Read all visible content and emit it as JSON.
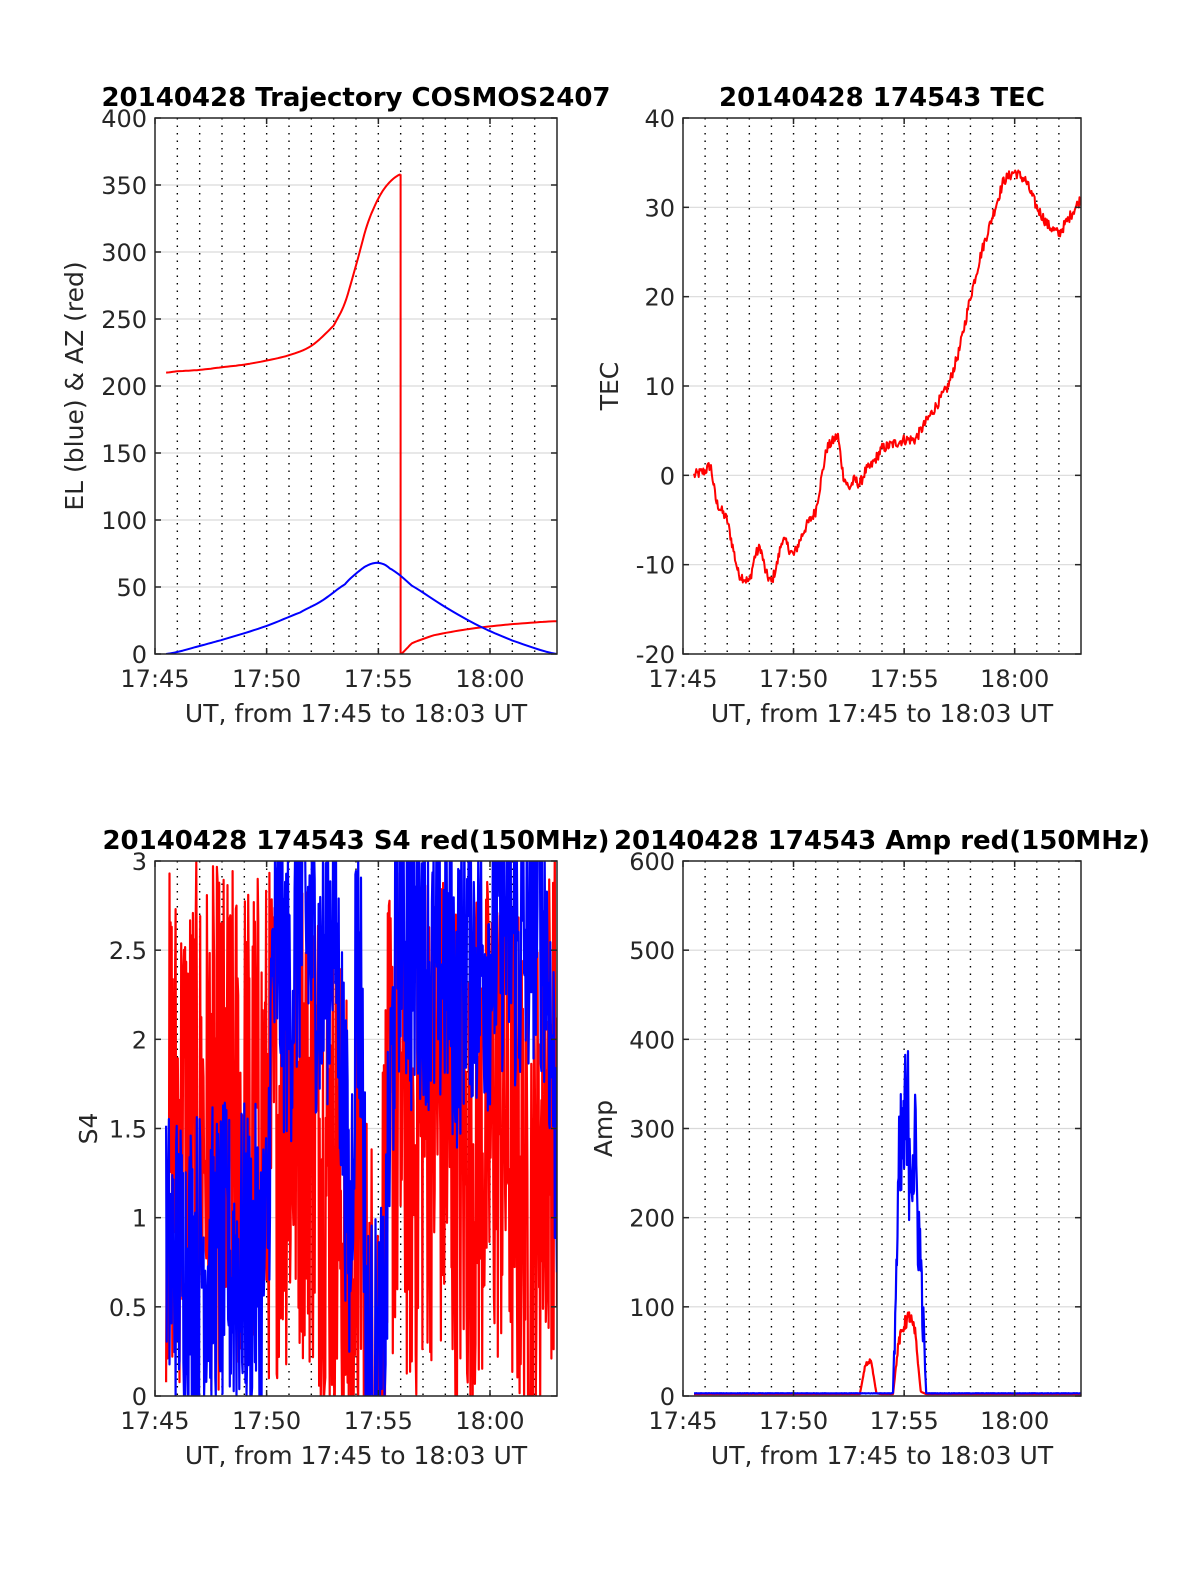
{
  "charts": {
    "colors": {
      "red": "#ff0000",
      "blue": "#0000ff",
      "grid_major": "#d9d9d9",
      "grid_minor": "#000000",
      "axis": "#262626"
    },
    "chart_data": [
      {
        "id": "trajectory",
        "type": "line",
        "title": "20140428 Trajectory COSMOS2407",
        "xlabel": "UT, from 17:45 to 18:03 UT",
        "ylabel": "EL (blue) & AZ (red)",
        "xlim": [
          17.75,
          18.05
        ],
        "ylim": [
          0,
          400
        ],
        "xticks": [
          17.75,
          17.8333,
          17.9167,
          18.0
        ],
        "xtick_labels": [
          "17:45",
          "17:50",
          "17:55",
          "18:00"
        ],
        "yticks": [
          0,
          50,
          100,
          150,
          200,
          250,
          300,
          350,
          400
        ],
        "ytick_labels": [
          "0",
          "50",
          "100",
          "150",
          "200",
          "250",
          "300",
          "350",
          "400"
        ],
        "grid": true,
        "series": [
          {
            "color": "red",
            "style": "smooth",
            "x": [
              17.7583,
              17.7667,
              17.7833,
              17.8,
              17.8167,
              17.8333,
              17.85,
              17.8667,
              17.8833,
              17.8917,
              17.9,
              17.9083,
              17.9167,
              17.925,
              17.9333
            ],
            "y": [
              210,
              211,
              212,
              214,
              216,
              219,
              223,
              230,
              245,
              262,
              290,
              320,
              340,
              352,
              358
            ]
          },
          {
            "color": "red",
            "style": "line",
            "x": [
              17.9333,
              17.9333
            ],
            "y": [
              358,
              0
            ]
          },
          {
            "color": "red",
            "style": "smooth",
            "x": [
              17.9333,
              17.9417,
              17.9583,
              17.9833,
              18.0083,
              18.0333,
              18.05
            ],
            "y": [
              0,
              8,
              14,
              18.5,
              21.5,
              23.5,
              24.5
            ]
          },
          {
            "color": "blue",
            "style": "smooth",
            "x": [
              17.7583,
              17.7833,
              17.8083,
              17.8333,
              17.8583,
              17.875,
              17.8917,
              17.9,
              17.9083,
              17.9167,
              17.925,
              17.9417,
              17.9667,
              17.9917,
              18.0167,
              18.05
            ],
            "y": [
              0,
              6,
              13,
              21,
              31,
              40,
              52,
              60,
              66,
              68,
              64,
              51,
              35,
              21,
              10,
              0
            ]
          }
        ]
      },
      {
        "id": "tec",
        "type": "line",
        "title": "20140428 174543 TEC",
        "xlabel": "UT, from 17:45 to 18:03 UT",
        "ylabel": "TEC",
        "xlim": [
          17.75,
          18.05
        ],
        "ylim": [
          -20,
          40
        ],
        "xticks": [
          17.75,
          17.8333,
          17.9167,
          18.0
        ],
        "xtick_labels": [
          "17:45",
          "17:50",
          "17:55",
          "18:00"
        ],
        "yticks": [
          -20,
          -10,
          0,
          10,
          20,
          30,
          40
        ],
        "ytick_labels": [
          "-20",
          "-10",
          "0",
          "10",
          "20",
          "30",
          "40"
        ],
        "grid": true,
        "series": [
          {
            "color": "red",
            "style": "line",
            "noise": 0.6,
            "x": [
              17.7583,
              17.7667,
              17.7708,
              17.775,
              17.7833,
              17.7917,
              17.8,
              17.8042,
              17.8083,
              17.8125,
              17.8167,
              17.8208,
              17.825,
              17.8333,
              17.8417,
              17.85,
              17.8583,
              17.8667,
              17.8708,
              17.875,
              17.8792,
              17.8833,
              17.8875,
              17.8917,
              17.8958,
              17.9,
              17.9083,
              17.9167,
              17.925,
              17.9333,
              17.9417,
              17.95,
              17.9583,
              17.9667,
              17.975,
              17.9833,
              17.9917,
              18.0,
              18.0083,
              18.0167,
              18.025,
              18.0333,
              18.0417,
              18.05
            ],
            "y": [
              0,
              0.5,
              1.2,
              -3,
              -5,
              -11,
              -12,
              -9,
              -8,
              -11,
              -12,
              -10,
              -7,
              -9,
              -6,
              -4,
              3,
              4.5,
              0,
              -1.5,
              -0.5,
              -1,
              0.5,
              1,
              2,
              3,
              3.5,
              4,
              4,
              6,
              8,
              10,
              14,
              20,
              25,
              29,
              33,
              34,
              33,
              30,
              28,
              27,
              29,
              31
            ]
          }
        ]
      },
      {
        "id": "s4",
        "type": "line",
        "title": "20140428 174543 S4 red(150MHz)",
        "xlabel": "UT, from 17:45 to 18:03 UT",
        "ylabel": "S4",
        "xlim": [
          17.75,
          18.05
        ],
        "ylim": [
          0,
          3
        ],
        "xticks": [
          17.75,
          17.8333,
          17.9167,
          18.0
        ],
        "xtick_labels": [
          "17:45",
          "17:50",
          "17:55",
          "18:00"
        ],
        "yticks": [
          0,
          0.5,
          1,
          1.5,
          2,
          2.5,
          3
        ],
        "ytick_labels": [
          "0",
          "0.5",
          "1",
          "1.5",
          "2",
          "2.5",
          "3"
        ],
        "grid": true,
        "series": [
          {
            "color": "red",
            "style": "jagged",
            "noise": 1.5,
            "x": [
              17.7583,
              17.7667,
              17.775,
              17.7833,
              17.7917,
              17.8,
              17.8083,
              17.8167,
              17.825,
              17.8333,
              17.8417,
              17.85,
              17.8583,
              17.8667,
              17.875,
              17.8833,
              17.8917,
              17.8958,
              17.9,
              17.9042,
              17.9083,
              17.9125,
              17.9167,
              17.9208,
              17.925,
              17.9292,
              17.9333,
              17.9375,
              17.9417,
              17.9458,
              17.95,
              17.9583,
              17.9667,
              17.975,
              17.9833,
              17.9917,
              18.0,
              18.0083,
              18.0167,
              18.025,
              18.0333,
              18.0417,
              18.05
            ],
            "y": [
              1.5,
              1.5,
              1.5,
              1.5,
              1.5,
              1.5,
              1.5,
              1.5,
              1.5,
              1.5,
              1.6,
              1.6,
              1.7,
              1.6,
              1.4,
              1.2,
              0.9,
              0.5,
              0.9,
              1.1,
              0.15,
              0.12,
              0.15,
              0.8,
              1.4,
              1.7,
              1.6,
              1.5,
              1.4,
              1.4,
              1.6,
              1.7,
              1.5,
              1.4,
              1.3,
              1.4,
              1.5,
              1.6,
              1.4,
              1.2,
              1.0,
              1.6,
              1.8
            ]
          },
          {
            "color": "blue",
            "style": "jagged",
            "noise": 0.9,
            "x": [
              17.7583,
              17.7667,
              17.775,
              17.7833,
              17.7917,
              17.8,
              17.8083,
              17.8167,
              17.825,
              17.8333,
              17.8375,
              17.8417,
              17.85,
              17.8583,
              17.8667,
              17.875,
              17.8833,
              17.8917,
              17.8958,
              17.9,
              17.9042,
              17.9083,
              17.9125,
              17.9167,
              17.9208,
              17.925,
              17.9292,
              17.9333,
              17.9417,
              17.95,
              17.9583,
              17.9667,
              17.975,
              17.9833,
              17.9917,
              18.0,
              18.0083,
              18.0167,
              18.025,
              18.0333,
              18.0417,
              18.05
            ],
            "y": [
              0.75,
              0.76,
              0.74,
              0.77,
              0.75,
              0.76,
              0.73,
              0.76,
              0.74,
              0.75,
              2.3,
              2.5,
              2.2,
              2.7,
              2.6,
              2.3,
              2.8,
              1.5,
              0.7,
              2.5,
              2.2,
              0.18,
              0.15,
              0.15,
              0.2,
              1.4,
              2.4,
              2.8,
              2.4,
              2.6,
              2.3,
              2.5,
              2.2,
              2.6,
              2.4,
              2.5,
              2.7,
              2.6,
              2.4,
              2.8,
              2.6,
              1.4
            ]
          }
        ]
      },
      {
        "id": "amp",
        "type": "line",
        "title": "20140428 174543 Amp red(150MHz)",
        "xlabel": "UT, from 17:45 to 18:03 UT",
        "ylabel": "Amp",
        "xlim": [
          17.75,
          18.05
        ],
        "ylim": [
          0,
          600
        ],
        "xticks": [
          17.75,
          17.8333,
          17.9167,
          18.0
        ],
        "xtick_labels": [
          "17:45",
          "17:50",
          "17:55",
          "18:00"
        ],
        "yticks": [
          0,
          100,
          200,
          300,
          400,
          500,
          600
        ],
        "ytick_labels": [
          "0",
          "100",
          "200",
          "300",
          "400",
          "500",
          "600"
        ],
        "grid": true,
        "series": [
          {
            "color": "red",
            "style": "jagged",
            "noise": 20,
            "x": [
              17.7583,
              17.8,
              17.85,
              17.8833,
              17.8875,
              17.8917,
              17.8958,
              17.9,
              17.9083,
              17.9125,
              17.9167,
              17.9208,
              17.925,
              17.9292,
              17.9333,
              17.95,
              18.0,
              18.05
            ],
            "y": [
              2,
              2,
              2,
              2,
              35,
              40,
              3,
              2,
              2,
              60,
              80,
              90,
              70,
              5,
              2,
              2,
              2,
              2
            ]
          },
          {
            "color": "blue",
            "style": "jagged",
            "noise": 70,
            "x": [
              17.7583,
              17.8,
              17.85,
              17.8833,
              17.9,
              17.9083,
              17.9125,
              17.9167,
              17.9208,
              17.925,
              17.9292,
              17.9333,
              17.95,
              18.0,
              18.05
            ],
            "y": [
              3,
              3,
              3,
              3,
              3,
              3,
              230,
              290,
              300,
              260,
              150,
              3,
              3,
              3,
              3
            ]
          }
        ]
      }
    ]
  }
}
